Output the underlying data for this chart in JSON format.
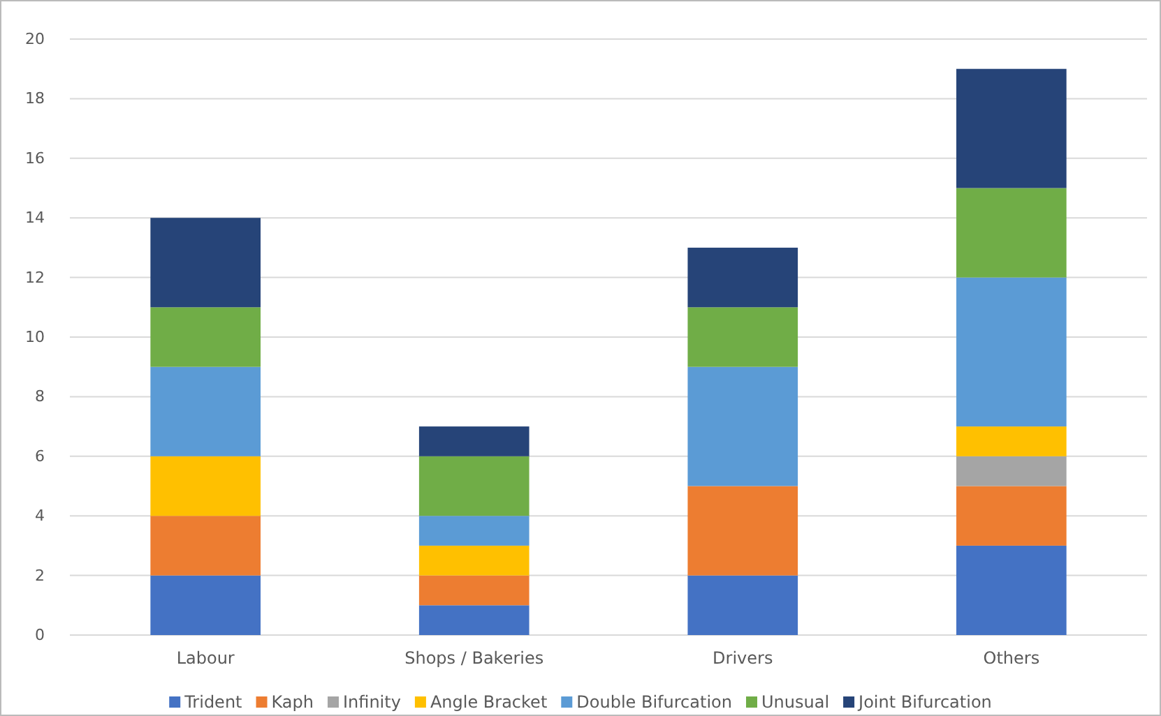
{
  "chart_data": {
    "type": "bar",
    "stacked": true,
    "categories": [
      "Labour",
      "Shops / Bakeries",
      "Drivers",
      "Others"
    ],
    "series": [
      {
        "name": "Trident",
        "color": "#4472c4",
        "values": [
          2,
          1,
          2,
          3
        ]
      },
      {
        "name": "Kaph",
        "color": "#ed7d31",
        "values": [
          2,
          1,
          3,
          2
        ]
      },
      {
        "name": "Infinity",
        "color": "#a5a5a5",
        "values": [
          0,
          0,
          0,
          1
        ]
      },
      {
        "name": "Angle Bracket",
        "color": "#ffc000",
        "values": [
          2,
          1,
          0,
          1
        ]
      },
      {
        "name": "Double Bifurcation",
        "color": "#5b9bd5",
        "values": [
          3,
          1,
          4,
          5
        ]
      },
      {
        "name": "Unusual",
        "color": "#70ad47",
        "values": [
          2,
          2,
          2,
          3
        ]
      },
      {
        "name": "Joint Bifurcation",
        "color": "#264478",
        "values": [
          3,
          1,
          2,
          4
        ]
      }
    ],
    "ylim": [
      0,
      20
    ],
    "yticks": [
      0,
      2,
      4,
      6,
      8,
      10,
      12,
      14,
      16,
      18,
      20
    ],
    "grid": "y",
    "legend": "bottom"
  }
}
